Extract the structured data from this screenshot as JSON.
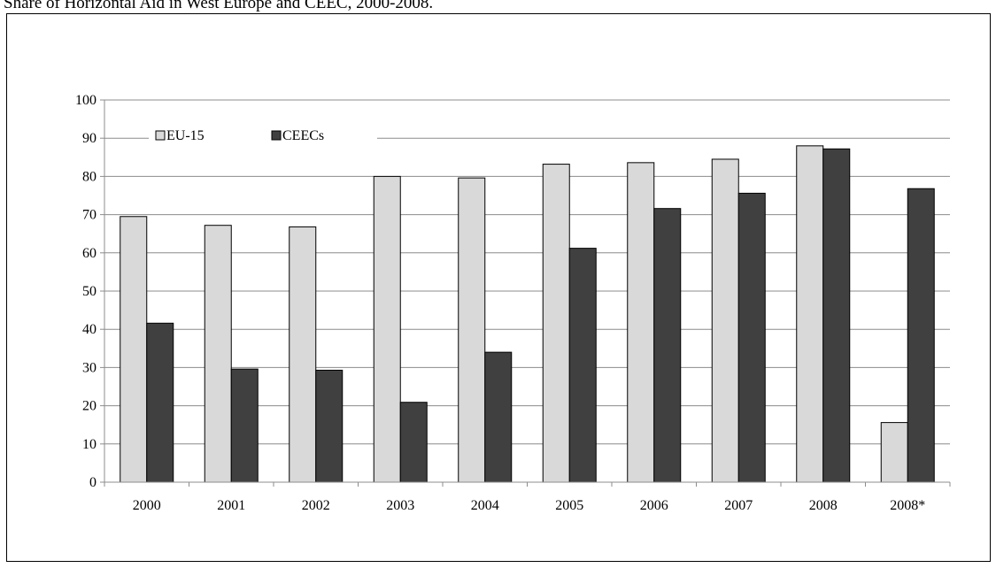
{
  "title": "Share of Horizontal Aid in West Europe and CEEC, 2000-2008.",
  "chart_data": {
    "type": "bar",
    "title": "Share of Horizontal Aid in West Europe and CEEC, 2000-2008.",
    "xlabel": "",
    "ylabel": "",
    "categories": [
      "2000",
      "2001",
      "2002",
      "2003",
      "2004",
      "2005",
      "2006",
      "2007",
      "2008",
      "2008*"
    ],
    "series": [
      {
        "name": "EU-15",
        "color": "#d9d9d9",
        "values": [
          69.5,
          67.2,
          66.8,
          80.0,
          79.6,
          83.2,
          83.6,
          84.5,
          88.0,
          15.6
        ]
      },
      {
        "name": "CEECs",
        "color": "#404040",
        "values": [
          41.6,
          29.6,
          29.3,
          20.9,
          34.0,
          61.2,
          71.6,
          75.6,
          87.2,
          76.8
        ]
      }
    ],
    "ylim": [
      0,
      100
    ],
    "yticks": [
      "0",
      "10",
      "20",
      "30",
      "40",
      "50",
      "60",
      "70",
      "80",
      "90",
      "100"
    ],
    "grid": true,
    "legend_position": "top-left"
  }
}
